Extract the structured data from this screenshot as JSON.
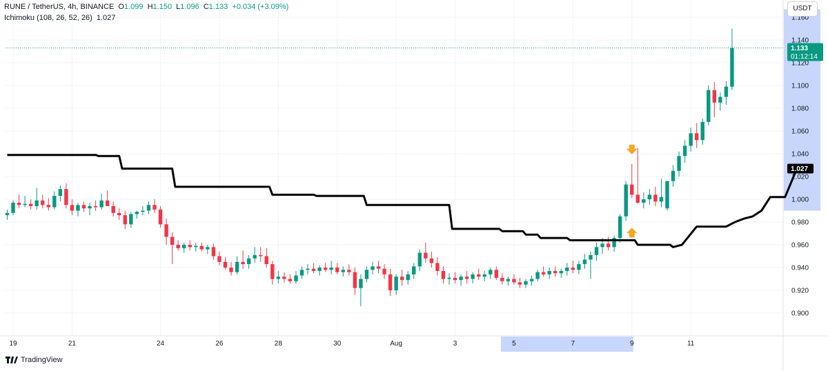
{
  "header": {
    "symbol": "RUNE / TetherUS, 4h, BINANCE",
    "o_label": "O",
    "o_value": "1.099",
    "h_label": "H",
    "h_value": "1.150",
    "l_label": "L",
    "l_value": "1.096",
    "c_label": "C",
    "c_value": "1.133",
    "change": "+0.034 (+3.09%)",
    "indicator_name": "Ichimoku (108, 26, 52, 26)",
    "indicator_value": "1.027"
  },
  "currency_button": "USDT",
  "branding": "TradingView",
  "colors": {
    "up": "#089981",
    "down": "#f23645",
    "line": "#000000",
    "highlight": "#c8d6fb",
    "arrow": "#f7a823"
  },
  "last_price_label": {
    "price": "1.133",
    "countdown": "01:12:14"
  },
  "indicator_label": "1.027",
  "chart_data": {
    "type": "candlestick",
    "y_ticks": [
      "1.160",
      "1.140",
      "1.120",
      "1.100",
      "1.080",
      "1.060",
      "1.040",
      "1.020",
      "1.000",
      "0.980",
      "0.960",
      "0.940",
      "0.920",
      "0.900"
    ],
    "x_ticks": [
      {
        "label": "19",
        "bar": 1
      },
      {
        "label": "21",
        "bar": 11
      },
      {
        "label": "24",
        "bar": 26
      },
      {
        "label": "26",
        "bar": 36
      },
      {
        "label": "28",
        "bar": 46
      },
      {
        "label": "30",
        "bar": 56
      },
      {
        "label": "Aug",
        "bar": 66
      },
      {
        "label": "3",
        "bar": 76
      },
      {
        "label": "5",
        "bar": 86
      },
      {
        "label": "7",
        "bar": 96
      },
      {
        "label": "9",
        "bar": 106
      },
      {
        "label": "11",
        "bar": 116
      }
    ],
    "ylim": [
      0.889,
      1.168
    ],
    "x_highlight_bars": [
      84,
      106
    ],
    "y_highlight_range": [
      0.99,
      1.167
    ],
    "series": [
      {
        "name": "RUNE / TetherUS",
        "candles": [
          [
            0.986,
            0.991,
            0.982,
            0.988
          ],
          [
            0.988,
            0.999,
            0.986,
            0.997
          ],
          [
            0.997,
            1.004,
            0.992,
            0.995
          ],
          [
            0.995,
            1.003,
            0.993,
            0.996
          ],
          [
            0.996,
            1.0,
            0.991,
            0.994
          ],
          [
            0.994,
            1.01,
            0.991,
            0.999
          ],
          [
            0.999,
            1.004,
            0.992,
            0.995
          ],
          [
            0.995,
            1.001,
            0.99,
            0.993
          ],
          [
            0.993,
            1.007,
            0.991,
            1.003
          ],
          [
            1.003,
            1.012,
            0.998,
            1.009
          ],
          [
            1.009,
            1.014,
            0.992,
            0.995
          ],
          [
            0.995,
            1.0,
            0.986,
            0.99
          ],
          [
            0.99,
            0.997,
            0.985,
            0.995
          ],
          [
            0.995,
            0.998,
            0.989,
            0.992
          ],
          [
            0.992,
            0.997,
            0.986,
            0.994
          ],
          [
            0.994,
            0.999,
            0.99,
            0.993
          ],
          [
            0.993,
            1.005,
            0.991,
            0.999
          ],
          [
            0.999,
            1.008,
            0.995,
            0.994
          ],
          [
            0.994,
            0.998,
            0.985,
            0.988
          ],
          [
            0.988,
            0.992,
            0.982,
            0.986
          ],
          [
            0.986,
            0.99,
            0.974,
            0.978
          ],
          [
            0.978,
            0.989,
            0.975,
            0.987
          ],
          [
            0.987,
            0.99,
            0.983,
            0.989
          ],
          [
            0.989,
            0.994,
            0.986,
            0.99
          ],
          [
            0.99,
            0.998,
            0.987,
            0.995
          ],
          [
            0.995,
            1.0,
            0.988,
            0.991
          ],
          [
            0.991,
            0.994,
            0.975,
            0.978
          ],
          [
            0.978,
            0.983,
            0.96,
            0.967
          ],
          [
            0.967,
            0.971,
            0.943,
            0.96
          ],
          [
            0.96,
            0.964,
            0.955,
            0.957
          ],
          [
            0.957,
            0.962,
            0.953,
            0.96
          ],
          [
            0.96,
            0.964,
            0.955,
            0.958
          ],
          [
            0.958,
            0.962,
            0.954,
            0.959
          ],
          [
            0.959,
            0.962,
            0.954,
            0.956
          ],
          [
            0.956,
            0.96,
            0.952,
            0.958
          ],
          [
            0.958,
            0.961,
            0.947,
            0.95
          ],
          [
            0.95,
            0.954,
            0.942,
            0.945
          ],
          [
            0.945,
            0.949,
            0.938,
            0.94
          ],
          [
            0.94,
            0.945,
            0.933,
            0.936
          ],
          [
            0.936,
            0.95,
            0.934,
            0.945
          ],
          [
            0.945,
            0.955,
            0.939,
            0.943
          ],
          [
            0.943,
            0.951,
            0.939,
            0.948
          ],
          [
            0.948,
            0.958,
            0.944,
            0.951
          ],
          [
            0.951,
            0.958,
            0.945,
            0.95
          ],
          [
            0.95,
            0.957,
            0.94,
            0.943
          ],
          [
            0.943,
            0.946,
            0.925,
            0.93
          ],
          [
            0.93,
            0.937,
            0.926,
            0.932
          ],
          [
            0.932,
            0.936,
            0.927,
            0.93
          ],
          [
            0.93,
            0.934,
            0.926,
            0.928
          ],
          [
            0.928,
            0.937,
            0.926,
            0.933
          ],
          [
            0.933,
            0.941,
            0.93,
            0.938
          ],
          [
            0.938,
            0.943,
            0.934,
            0.939
          ],
          [
            0.939,
            0.944,
            0.935,
            0.937
          ],
          [
            0.937,
            0.942,
            0.933,
            0.94
          ],
          [
            0.94,
            0.944,
            0.936,
            0.938
          ],
          [
            0.938,
            0.946,
            0.934,
            0.94
          ],
          [
            0.94,
            0.944,
            0.934,
            0.936
          ],
          [
            0.936,
            0.941,
            0.932,
            0.938
          ],
          [
            0.938,
            0.943,
            0.933,
            0.936
          ],
          [
            0.936,
            0.94,
            0.916,
            0.922
          ],
          [
            0.922,
            0.934,
            0.906,
            0.93
          ],
          [
            0.93,
            0.941,
            0.927,
            0.938
          ],
          [
            0.938,
            0.945,
            0.934,
            0.941
          ],
          [
            0.941,
            0.946,
            0.935,
            0.939
          ],
          [
            0.939,
            0.943,
            0.93,
            0.934
          ],
          [
            0.934,
            0.939,
            0.915,
            0.92
          ],
          [
            0.92,
            0.934,
            0.916,
            0.932
          ],
          [
            0.932,
            0.938,
            0.924,
            0.929
          ],
          [
            0.929,
            0.937,
            0.925,
            0.934
          ],
          [
            0.934,
            0.944,
            0.93,
            0.941
          ],
          [
            0.941,
            0.956,
            0.937,
            0.953
          ],
          [
            0.953,
            0.962,
            0.944,
            0.948
          ],
          [
            0.948,
            0.954,
            0.94,
            0.944
          ],
          [
            0.944,
            0.949,
            0.933,
            0.937
          ],
          [
            0.937,
            0.941,
            0.926,
            0.93
          ],
          [
            0.93,
            0.935,
            0.925,
            0.931
          ],
          [
            0.931,
            0.936,
            0.926,
            0.929
          ],
          [
            0.929,
            0.934,
            0.924,
            0.932
          ],
          [
            0.932,
            0.937,
            0.926,
            0.93
          ],
          [
            0.93,
            0.936,
            0.926,
            0.934
          ],
          [
            0.934,
            0.939,
            0.929,
            0.932
          ],
          [
            0.932,
            0.937,
            0.928,
            0.934
          ],
          [
            0.934,
            0.94,
            0.93,
            0.938
          ],
          [
            0.938,
            0.941,
            0.929,
            0.931
          ],
          [
            0.931,
            0.935,
            0.925,
            0.928
          ],
          [
            0.928,
            0.932,
            0.924,
            0.93
          ],
          [
            0.93,
            0.934,
            0.925,
            0.927
          ],
          [
            0.927,
            0.931,
            0.922,
            0.925
          ],
          [
            0.925,
            0.93,
            0.922,
            0.928
          ],
          [
            0.928,
            0.933,
            0.924,
            0.93
          ],
          [
            0.93,
            0.938,
            0.928,
            0.936
          ],
          [
            0.936,
            0.941,
            0.932,
            0.934
          ],
          [
            0.934,
            0.94,
            0.93,
            0.937
          ],
          [
            0.937,
            0.941,
            0.932,
            0.935
          ],
          [
            0.935,
            0.939,
            0.931,
            0.937
          ],
          [
            0.937,
            0.944,
            0.933,
            0.94
          ],
          [
            0.94,
            0.946,
            0.935,
            0.938
          ],
          [
            0.938,
            0.946,
            0.934,
            0.943
          ],
          [
            0.943,
            0.952,
            0.939,
            0.947
          ],
          [
            0.947,
            0.954,
            0.93,
            0.951
          ],
          [
            0.951,
            0.962,
            0.946,
            0.958
          ],
          [
            0.958,
            0.966,
            0.952,
            0.961
          ],
          [
            0.961,
            0.967,
            0.955,
            0.958
          ],
          [
            0.958,
            0.968,
            0.954,
            0.966
          ],
          [
            0.966,
            0.987,
            0.962,
            0.985
          ],
          [
            0.985,
            1.016,
            0.981,
            1.013
          ],
          [
            1.013,
            1.031,
            1.001,
            1.004
          ],
          [
            1.004,
            1.045,
            0.996,
            0.997
          ],
          [
            0.997,
            1.006,
            0.992,
            1.0
          ],
          [
            1.0,
            1.009,
            0.995,
            1.004
          ],
          [
            1.004,
            1.011,
            0.994,
            0.998
          ],
          [
            0.998,
            1.018,
            0.993,
            1.002
          ],
          [
            0.992,
            1.016,
            0.99,
            1.016
          ],
          [
            1.016,
            1.03,
            1.011,
            1.025
          ],
          [
            1.025,
            1.042,
            1.02,
            1.038
          ],
          [
            1.038,
            1.052,
            1.032,
            1.047
          ],
          [
            1.047,
            1.063,
            1.042,
            1.058
          ],
          [
            1.058,
            1.067,
            1.045,
            1.052
          ],
          [
            1.052,
            1.071,
            1.048,
            1.068
          ],
          [
            1.068,
            1.1,
            1.065,
            1.096
          ],
          [
            1.096,
            1.103,
            1.072,
            1.085
          ],
          [
            1.085,
            1.094,
            1.078,
            1.09
          ],
          [
            1.09,
            1.104,
            1.083,
            1.099
          ],
          [
            1.099,
            1.15,
            1.096,
            1.133
          ]
        ]
      },
      {
        "name": "Ichimoku (108, 26, 52, 26)",
        "line_points": [
          [
            0,
            1.039
          ],
          [
            30,
            1.039
          ],
          [
            31,
            1.038
          ],
          [
            38,
            1.038
          ],
          [
            39,
            1.027
          ],
          [
            56,
            1.027
          ],
          [
            57,
            1.011
          ],
          [
            89,
            1.011
          ],
          [
            90,
            1.004
          ],
          [
            104,
            1.004
          ],
          [
            105,
            1.003
          ],
          [
            121,
            1.003
          ],
          [
            122,
            0.995
          ],
          [
            150,
            0.995
          ],
          [
            151,
            0.974
          ],
          [
            167,
            0.974
          ],
          [
            168,
            0.972
          ],
          [
            175,
            0.972
          ],
          [
            176,
            0.969
          ],
          [
            180,
            0.969
          ],
          [
            181,
            0.966
          ],
          [
            190,
            0.966
          ],
          [
            191,
            0.964
          ],
          [
            213,
            0.964
          ],
          [
            214,
            0.96
          ],
          [
            225,
            0.96
          ],
          [
            226,
            0.958
          ],
          [
            229,
            0.96
          ],
          [
            234,
            0.976
          ],
          [
            244,
            0.976
          ],
          [
            247,
            0.98
          ],
          [
            250,
            0.983
          ],
          [
            253,
            0.985
          ],
          [
            256,
            0.99
          ],
          [
            259,
            1.002
          ],
          [
            264,
            1.002
          ],
          [
            268,
            1.027
          ]
        ],
        "line_x_unit": "bar/2"
      }
    ],
    "annotations": [
      {
        "type": "arrow-down",
        "bar": 106,
        "price": 1.048
      },
      {
        "type": "arrow-up",
        "bar": 106,
        "price": 0.975
      }
    ]
  }
}
